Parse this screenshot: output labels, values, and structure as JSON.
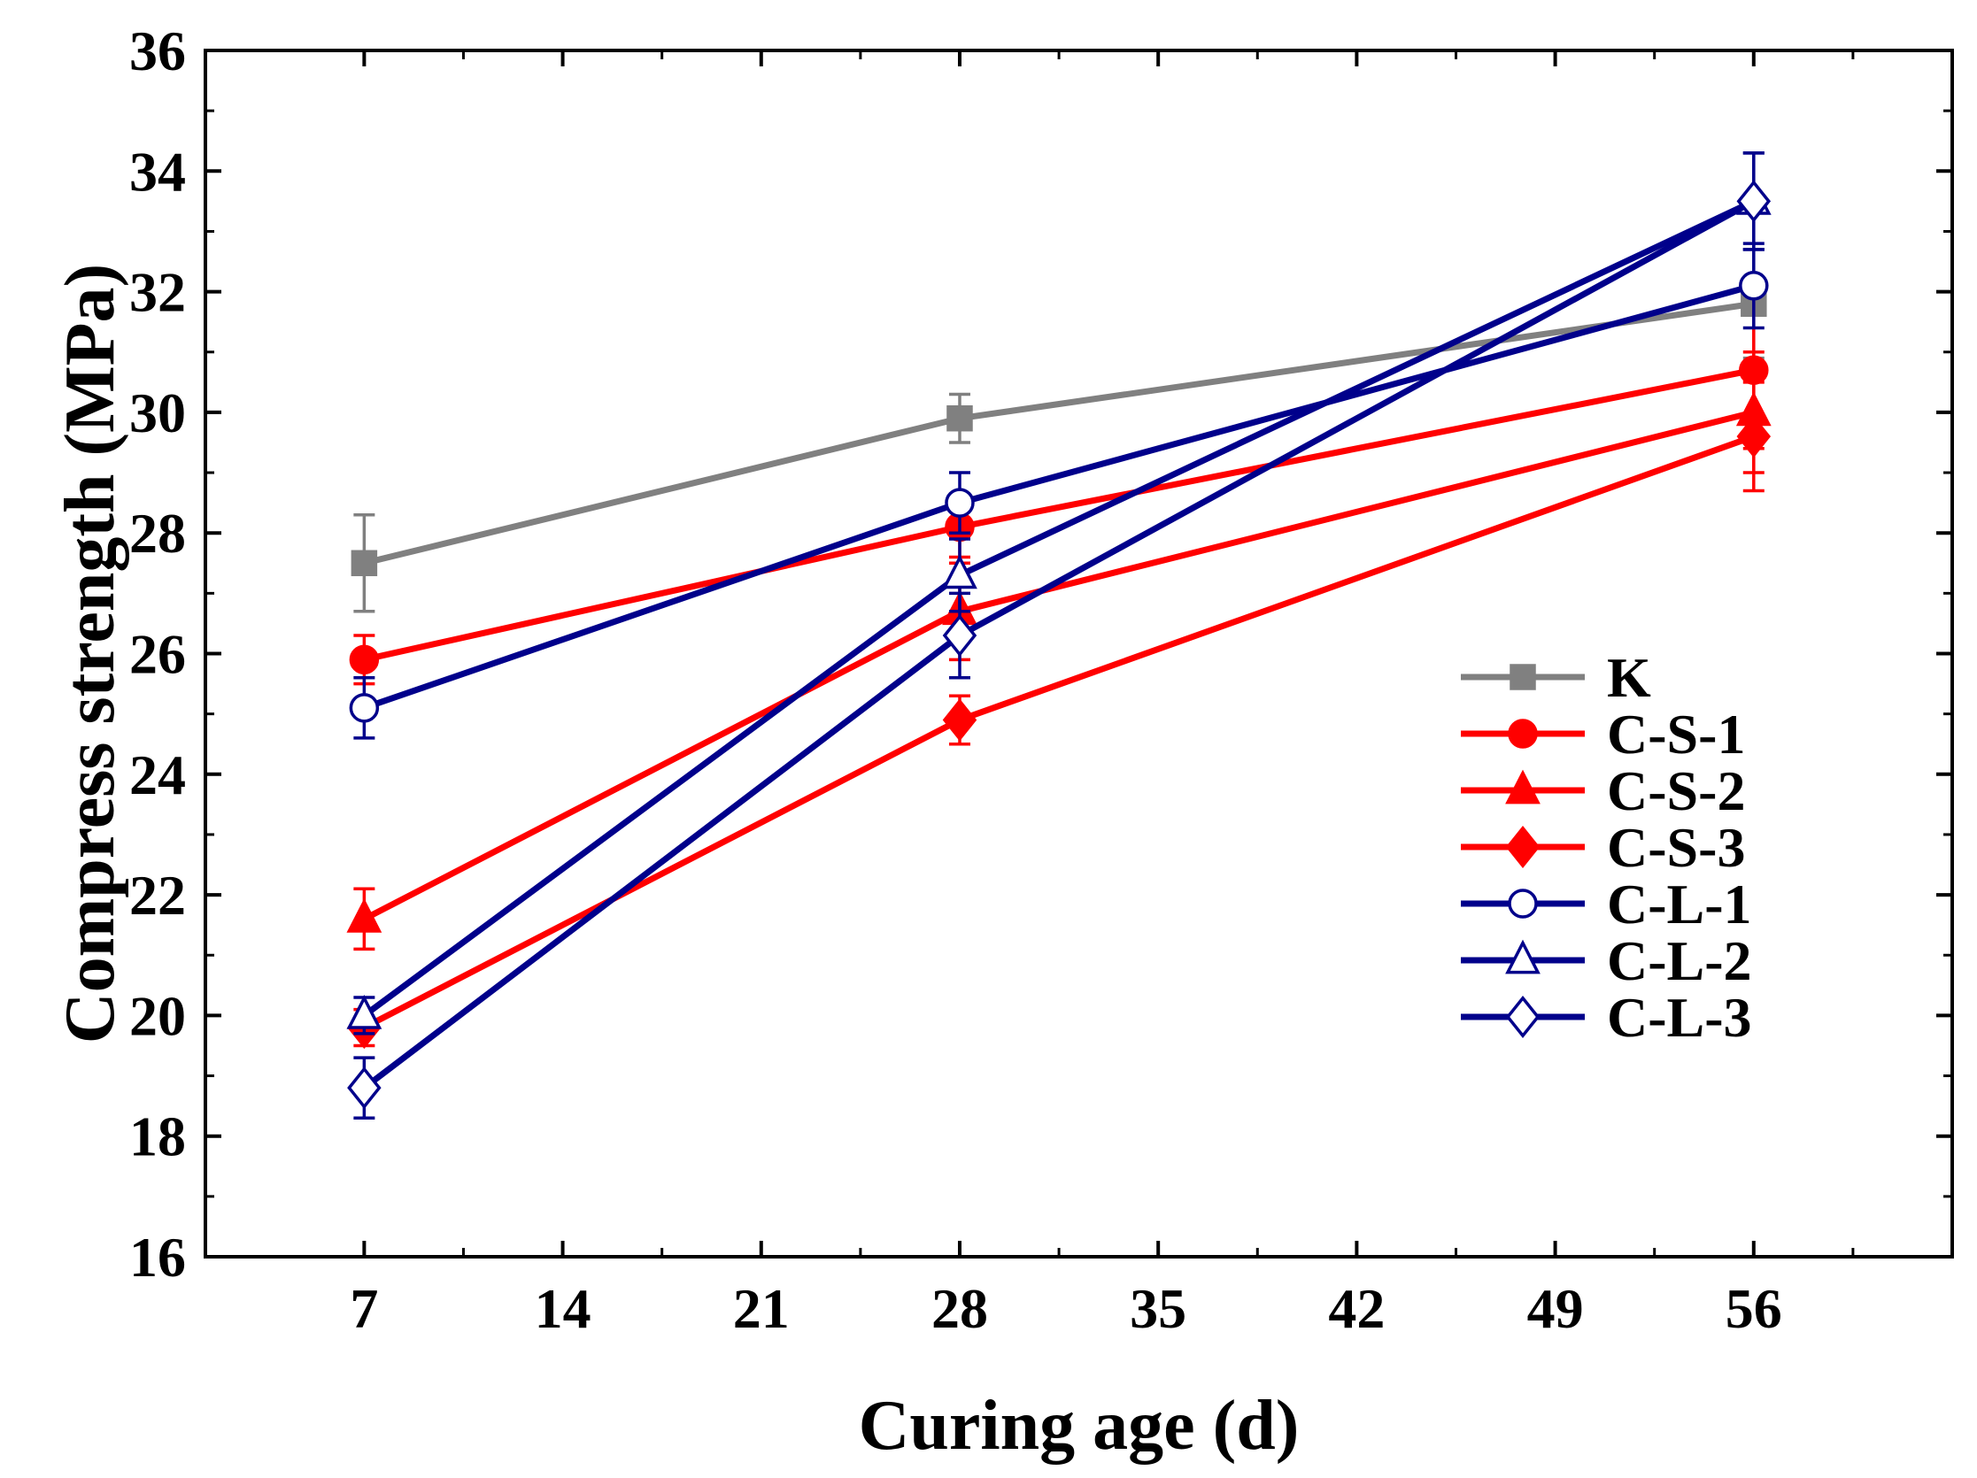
{
  "chart_data": {
    "type": "line",
    "title": "",
    "xlabel": "Curing age (d)",
    "ylabel": "Compress strength (MPa)",
    "xlim": [
      1.4,
      63
    ],
    "ylim": [
      16,
      36
    ],
    "xticks": [
      7,
      14,
      21,
      28,
      35,
      42,
      49,
      56
    ],
    "yticks": [
      16,
      18,
      20,
      22,
      24,
      26,
      28,
      30,
      32,
      34,
      36
    ],
    "legend_position": "bottom-right",
    "x": [
      7,
      28,
      56
    ],
    "series": [
      {
        "name": "K",
        "color": "#808080",
        "marker": "square",
        "filled": true,
        "values": [
          27.5,
          29.9,
          31.8
        ],
        "errors": [
          0.8,
          0.4,
          0.9
        ]
      },
      {
        "name": "C-S-1",
        "color": "#ff0000",
        "marker": "circle",
        "filled": true,
        "values": [
          25.9,
          28.1,
          30.7
        ],
        "errors": [
          0.4,
          0.5,
          1.3
        ]
      },
      {
        "name": "C-S-2",
        "color": "#ff0000",
        "marker": "triangle",
        "filled": true,
        "values": [
          21.6,
          26.7,
          30.0
        ],
        "errors": [
          0.5,
          0.8,
          1.0
        ]
      },
      {
        "name": "C-S-3",
        "color": "#ff0000",
        "marker": "diamond",
        "filled": true,
        "values": [
          19.8,
          24.9,
          29.6
        ],
        "errors": [
          0.3,
          0.4,
          0.9
        ]
      },
      {
        "name": "C-L-1",
        "color": "#00008b",
        "marker": "circle",
        "filled": false,
        "values": [
          25.1,
          28.5,
          32.1
        ],
        "errors": [
          0.5,
          0.5,
          0.7
        ]
      },
      {
        "name": "C-L-2",
        "color": "#00008b",
        "marker": "triangle",
        "filled": false,
        "values": [
          20.0,
          27.3,
          33.5
        ],
        "errors": [
          0.3,
          0.6,
          0.8
        ]
      },
      {
        "name": "C-L-3",
        "color": "#00008b",
        "marker": "diamond",
        "filled": false,
        "values": [
          18.8,
          26.3,
          33.5
        ],
        "errors": [
          0.5,
          0.7,
          0.8
        ]
      }
    ]
  }
}
